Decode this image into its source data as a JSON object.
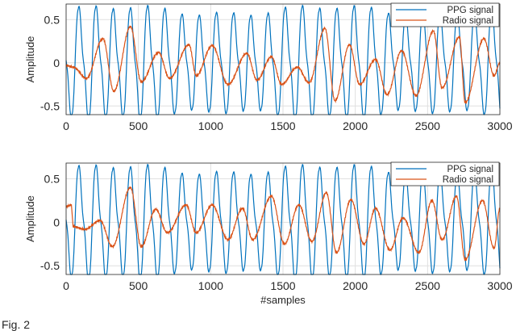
{
  "figure_caption": "Fig. 2",
  "chart_data": [
    {
      "type": "line",
      "title": "",
      "xlabel": "",
      "ylabel": "Amplitude",
      "xlim": [
        0,
        3000
      ],
      "ylim": [
        -0.6,
        0.68
      ],
      "xticks": [
        0,
        500,
        1000,
        1500,
        2000,
        2500,
        3000
      ],
      "yticks": [
        -0.5,
        0,
        0.5
      ],
      "grid": true,
      "legend_position": "top-right",
      "series": [
        {
          "name": "PPG signal",
          "color": "#0072bd",
          "period": 119,
          "phase_x": 160,
          "amplitude": 0.58,
          "offset": 0.0
        },
        {
          "name": "Radio signal",
          "color": "#d95319",
          "peaks": [
            [
              0,
              -0.03
            ],
            [
              50,
              -0.05
            ],
            [
              140,
              -0.18
            ],
            [
              255,
              0.28
            ],
            [
              330,
              -0.33
            ],
            [
              445,
              0.42
            ],
            [
              520,
              -0.22
            ],
            [
              640,
              0.12
            ],
            [
              715,
              -0.18
            ],
            [
              850,
              0.21
            ],
            [
              900,
              -0.15
            ],
            [
              1010,
              0.2
            ],
            [
              1120,
              -0.25
            ],
            [
              1250,
              0.11
            ],
            [
              1320,
              -0.2
            ],
            [
              1420,
              0.07
            ],
            [
              1490,
              -0.25
            ],
            [
              1600,
              -0.05
            ],
            [
              1680,
              -0.23
            ],
            [
              1790,
              0.4
            ],
            [
              1860,
              -0.44
            ],
            [
              1960,
              0.21
            ],
            [
              2030,
              -0.25
            ],
            [
              2140,
              0.04
            ],
            [
              2220,
              -0.37
            ],
            [
              2320,
              0.14
            ],
            [
              2420,
              -0.38
            ],
            [
              2540,
              0.37
            ],
            [
              2600,
              -0.29
            ],
            [
              2720,
              0.3
            ],
            [
              2760,
              -0.46
            ],
            [
              2890,
              0.28
            ],
            [
              2960,
              -0.15
            ],
            [
              3000,
              0.0
            ]
          ]
        }
      ]
    },
    {
      "type": "line",
      "title": "",
      "xlabel": "#samples",
      "ylabel": "Amplitude",
      "xlim": [
        0,
        3000
      ],
      "ylim": [
        -0.6,
        0.68
      ],
      "xticks": [
        0,
        500,
        1000,
        1500,
        2000,
        2500,
        3000
      ],
      "yticks": [
        -0.5,
        0,
        0.5
      ],
      "grid": true,
      "legend_position": "top-right",
      "series": [
        {
          "name": "PPG signal",
          "color": "#0072bd",
          "period": 119,
          "phase_x": 160,
          "amplitude": 0.58,
          "offset": 0.0
        },
        {
          "name": "Radio signal",
          "color": "#d95319",
          "peaks": [
            [
              0,
              0.18
            ],
            [
              35,
              0.2
            ],
            [
              50,
              -0.05
            ],
            [
              130,
              -0.08
            ],
            [
              235,
              0.02
            ],
            [
              320,
              -0.28
            ],
            [
              445,
              0.4
            ],
            [
              520,
              -0.28
            ],
            [
              620,
              0.15
            ],
            [
              700,
              -0.12
            ],
            [
              830,
              0.2
            ],
            [
              900,
              -0.12
            ],
            [
              1010,
              0.2
            ],
            [
              1120,
              -0.2
            ],
            [
              1220,
              0.16
            ],
            [
              1290,
              -0.2
            ],
            [
              1420,
              0.3
            ],
            [
              1510,
              -0.25
            ],
            [
              1610,
              0.2
            ],
            [
              1700,
              -0.22
            ],
            [
              1800,
              0.34
            ],
            [
              1870,
              -0.35
            ],
            [
              1970,
              0.26
            ],
            [
              2060,
              -0.25
            ],
            [
              2140,
              0.16
            ],
            [
              2240,
              -0.32
            ],
            [
              2330,
              0.05
            ],
            [
              2440,
              -0.35
            ],
            [
              2530,
              0.25
            ],
            [
              2600,
              -0.2
            ],
            [
              2700,
              0.3
            ],
            [
              2760,
              -0.43
            ],
            [
              2880,
              0.25
            ],
            [
              2960,
              -0.3
            ],
            [
              3000,
              0.16
            ]
          ]
        }
      ]
    }
  ]
}
